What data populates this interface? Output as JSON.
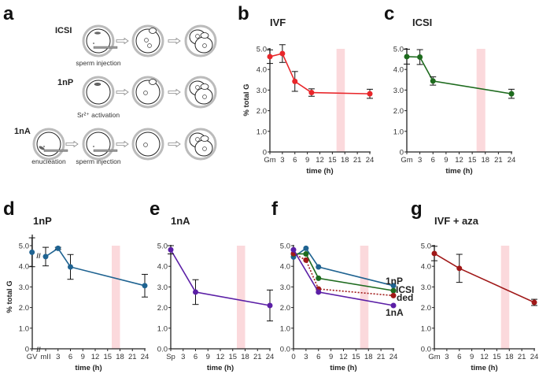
{
  "panel_a": {
    "letter": "a",
    "rows": [
      {
        "label": "ICSI",
        "captions": [
          "sperm injection"
        ]
      },
      {
        "label": "1nP",
        "captions": [
          "Sr²⁺ activation"
        ]
      },
      {
        "label": "1nA",
        "captions": [
          "enucleation",
          "sperm injection"
        ]
      }
    ]
  },
  "chart_data": [
    {
      "panel": "b",
      "type": "line",
      "title": "IVF",
      "ylabel": "% total G",
      "xlabel": "time (h)",
      "ylim": [
        0,
        5
      ],
      "yticks": [
        "0",
        "1.0",
        "2.0",
        "3.0",
        "4.0",
        "5.0"
      ],
      "xticks": [
        "Gm",
        "3",
        "6",
        "9",
        "12",
        "15",
        "18",
        "21",
        "24"
      ],
      "band": [
        16,
        18
      ],
      "band_color": "#fbd9dc",
      "series": [
        {
          "color": "#e8262a",
          "dashed": false,
          "x": [
            "Gm",
            3,
            6,
            10,
            24
          ],
          "y": [
            4.62,
            4.77,
            3.42,
            2.88,
            2.82
          ],
          "err": [
            0.33,
            0.43,
            0.48,
            0.18,
            0.22
          ]
        }
      ]
    },
    {
      "panel": "c",
      "type": "line",
      "title": "ICSI",
      "ylabel": "",
      "xlabel": "time (h)",
      "ylim": [
        0,
        5
      ],
      "yticks": [
        "0",
        "1.0",
        "2.0",
        "3.0",
        "4.0",
        "5.0"
      ],
      "xticks": [
        "Gm",
        "3",
        "6",
        "9",
        "12",
        "15",
        "18",
        "21",
        "24"
      ],
      "band": [
        16,
        18
      ],
      "band_color": "#fbd9dc",
      "series": [
        {
          "color": "#1e6b1e",
          "dashed": false,
          "x": [
            "Gm",
            3,
            6,
            24
          ],
          "y": [
            4.62,
            4.6,
            3.44,
            2.82
          ],
          "err": [
            0.36,
            0.36,
            0.2,
            0.22
          ]
        }
      ]
    },
    {
      "panel": "d",
      "type": "line",
      "title": "1nP",
      "ylabel": "% total G",
      "xlabel": "time (h)",
      "ylim": [
        0,
        5
      ],
      "yticks": [
        "0",
        "1.0",
        "2.0",
        "3.0",
        "4.0",
        "5.0"
      ],
      "xticks": [
        "GV",
        "mII",
        "3",
        "6",
        "9",
        "12",
        "15",
        "18",
        "21",
        "24"
      ],
      "band": [
        16,
        18
      ],
      "band_color": "#fbd9dc",
      "series": [
        {
          "color": "#1f6391",
          "dashed": false,
          "x": [
            "GV",
            "mII",
            3,
            6,
            24
          ],
          "y": [
            4.68,
            4.47,
            4.87,
            3.97,
            3.06
          ],
          "err": [
            0.7,
            0.45,
            0.05,
            0.6,
            0.55
          ]
        }
      ]
    },
    {
      "panel": "e",
      "type": "line",
      "title": "1nA",
      "ylabel": "",
      "xlabel": "time (h)",
      "ylim": [
        0,
        5
      ],
      "yticks": [
        "0.0",
        "1.0",
        "2.0",
        "3.0",
        "4.0",
        "5.0"
      ],
      "xticks": [
        "Sp",
        "3",
        "6",
        "9",
        "12",
        "15",
        "18",
        "21",
        "24"
      ],
      "band": [
        16,
        18
      ],
      "band_color": "#fbd9dc",
      "series": [
        {
          "color": "#5b1fa6",
          "dashed": false,
          "x": [
            "Sp",
            6,
            24
          ],
          "y": [
            4.8,
            2.75,
            2.1
          ],
          "err": [
            0.2,
            0.6,
            0.75
          ]
        }
      ]
    },
    {
      "panel": "f",
      "type": "line",
      "title": "",
      "ylabel": "",
      "xlabel": "time (h)",
      "ylim": [
        0,
        5
      ],
      "yticks": [
        "0.0",
        "1.0",
        "2.0",
        "3.0",
        "4.0",
        "5.0"
      ],
      "xticks": [
        "0",
        "3",
        "6",
        "9",
        "12",
        "15",
        "18",
        "21",
        "24"
      ],
      "band": [
        16,
        18
      ],
      "band_color": "#fbd9dc",
      "series": [
        {
          "name": "1nP",
          "color": "#1f6391",
          "dashed": false,
          "x": [
            0,
            3,
            6,
            24
          ],
          "y": [
            4.45,
            4.87,
            3.97,
            3.06
          ]
        },
        {
          "name": "ICSI",
          "color": "#1e6b1e",
          "dashed": false,
          "x": [
            0,
            3,
            6,
            24
          ],
          "y": [
            4.6,
            4.6,
            3.42,
            2.82
          ]
        },
        {
          "name": "ded",
          "color": "#a01818",
          "dashed": true,
          "x": [
            0,
            3,
            6,
            24
          ],
          "y": [
            4.62,
            4.3,
            2.9,
            2.58
          ]
        },
        {
          "name": "1nA",
          "color": "#5b1fa6",
          "dashed": false,
          "x": [
            0,
            6,
            24
          ],
          "y": [
            4.8,
            2.75,
            2.1
          ]
        }
      ]
    },
    {
      "panel": "g",
      "type": "line",
      "title": "IVF + aza",
      "ylabel": "",
      "xlabel": "time (h)",
      "ylim": [
        0,
        5
      ],
      "yticks": [
        "0.0",
        "1.0",
        "2.0",
        "3.0",
        "4.0",
        "5.0"
      ],
      "xticks": [
        "Gm",
        "3",
        "6",
        "9",
        "12",
        "15",
        "18",
        "21",
        "24"
      ],
      "band": [
        16,
        18
      ],
      "band_color": "#fbd9dc",
      "series": [
        {
          "color": "#a01818",
          "dashed": false,
          "x": [
            "Gm",
            6,
            24
          ],
          "y": [
            4.62,
            3.9,
            2.25
          ],
          "err": [
            0.35,
            0.68,
            0.15
          ]
        }
      ]
    }
  ]
}
